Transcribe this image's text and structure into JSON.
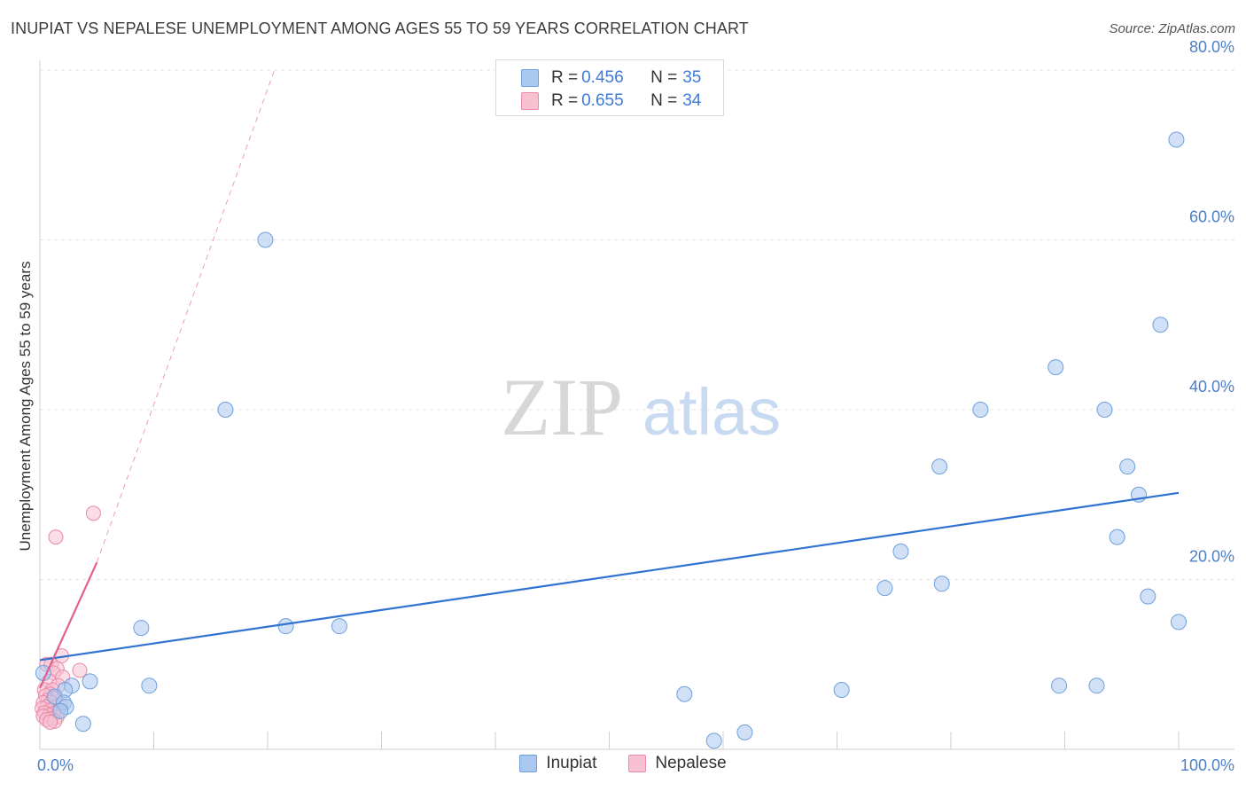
{
  "header": {
    "title": "INUPIAT VS NEPALESE UNEMPLOYMENT AMONG AGES 55 TO 59 YEARS CORRELATION CHART",
    "source": "Source: ZipAtlas.com"
  },
  "watermark": {
    "zip": "ZIP",
    "atlas": "atlas"
  },
  "legend": {
    "rows": [
      {
        "r_label": "R = ",
        "r_value": "0.456",
        "n_label": "N = ",
        "n_value": "35",
        "color": "#aac8f0",
        "border": "#6f9fdc"
      },
      {
        "r_label": "R = ",
        "r_value": "0.655",
        "n_label": "N = ",
        "n_value": "34",
        "color": "#f7c1d2",
        "border": "#e88aa8"
      }
    ]
  },
  "bottom_legend": [
    {
      "label": "Inupiat",
      "color": "#aac8f0",
      "border": "#6f9fdc"
    },
    {
      "label": "Nepalese",
      "color": "#f7c1d2",
      "border": "#e88aa8"
    }
  ],
  "chart_data": {
    "type": "scatter",
    "title": "INUPIAT VS NEPALESE UNEMPLOYMENT AMONG AGES 55 TO 59 YEARS CORRELATION CHART",
    "xlabel": "",
    "ylabel": "Unemployment Among Ages 55 to 59 years",
    "xlim": [
      0,
      100
    ],
    "ylim": [
      0,
      80
    ],
    "x_tick_labels": [
      "0.0%",
      "100.0%"
    ],
    "y_ticks": [
      20,
      40,
      60,
      80
    ],
    "y_tick_labels": [
      "20.0%",
      "40.0%",
      "60.0%",
      "80.0%"
    ],
    "series": [
      {
        "name": "Inupiat",
        "color": "#aac8f0",
        "stroke": "#6f9fdc",
        "line_color": "#2f72d2",
        "trend": {
          "x": [
            0,
            100
          ],
          "y": [
            10.5,
            30.2
          ]
        },
        "points": [
          [
            99.8,
            71.8
          ],
          [
            19.8,
            60.0
          ],
          [
            98.4,
            50.0
          ],
          [
            89.2,
            45.0
          ],
          [
            16.3,
            40.0
          ],
          [
            82.6,
            40.0
          ],
          [
            93.5,
            40.0
          ],
          [
            79.0,
            33.3
          ],
          [
            95.5,
            33.3
          ],
          [
            96.5,
            30.0
          ],
          [
            94.6,
            25.0
          ],
          [
            75.6,
            23.3
          ],
          [
            74.2,
            19.0
          ],
          [
            79.2,
            19.5
          ],
          [
            97.3,
            18.0
          ],
          [
            100.0,
            15.0
          ],
          [
            8.9,
            14.3
          ],
          [
            21.6,
            14.5
          ],
          [
            26.3,
            14.5
          ],
          [
            0.3,
            9.0
          ],
          [
            4.4,
            8.0
          ],
          [
            2.8,
            7.5
          ],
          [
            9.6,
            7.5
          ],
          [
            2.2,
            7.0
          ],
          [
            70.4,
            7.0
          ],
          [
            89.5,
            7.5
          ],
          [
            92.8,
            7.5
          ],
          [
            56.6,
            6.5
          ],
          [
            1.3,
            6.2
          ],
          [
            2.1,
            5.5
          ],
          [
            2.3,
            5.0
          ],
          [
            1.8,
            4.5
          ],
          [
            3.8,
            3.0
          ],
          [
            61.9,
            2.0
          ],
          [
            59.2,
            1.0
          ]
        ]
      },
      {
        "name": "Nepalese",
        "color": "#f7c1d2",
        "stroke": "#e88aa8",
        "line_color": "#e0608e",
        "trend": {
          "x": [
            0,
            5
          ],
          "y": [
            7.2,
            22.0
          ]
        },
        "trend_extension": {
          "x": [
            5,
            20.6
          ],
          "y": [
            22.0,
            80.0
          ]
        },
        "points": [
          [
            4.7,
            27.8
          ],
          [
            1.4,
            25.0
          ],
          [
            1.9,
            11.0
          ],
          [
            0.6,
            10.0
          ],
          [
            1.0,
            10.0
          ],
          [
            1.5,
            9.5
          ],
          [
            3.5,
            9.3
          ],
          [
            1.2,
            9.0
          ],
          [
            2.0,
            8.5
          ],
          [
            0.8,
            8.0
          ],
          [
            1.6,
            7.5
          ],
          [
            0.4,
            7.0
          ],
          [
            1.1,
            7.0
          ],
          [
            0.9,
            6.5
          ],
          [
            0.5,
            6.3
          ],
          [
            1.3,
            6.0
          ],
          [
            0.7,
            5.8
          ],
          [
            0.3,
            5.5
          ],
          [
            1.0,
            5.5
          ],
          [
            1.8,
            5.2
          ],
          [
            0.6,
            5.0
          ],
          [
            1.4,
            5.0
          ],
          [
            0.2,
            4.8
          ],
          [
            0.9,
            4.6
          ],
          [
            1.6,
            4.5
          ],
          [
            0.4,
            4.3
          ],
          [
            1.2,
            4.2
          ],
          [
            0.8,
            4.0
          ],
          [
            0.3,
            3.9
          ],
          [
            1.5,
            3.8
          ],
          [
            1.0,
            3.6
          ],
          [
            0.6,
            3.5
          ],
          [
            1.3,
            3.3
          ],
          [
            0.9,
            3.2
          ]
        ]
      }
    ]
  }
}
